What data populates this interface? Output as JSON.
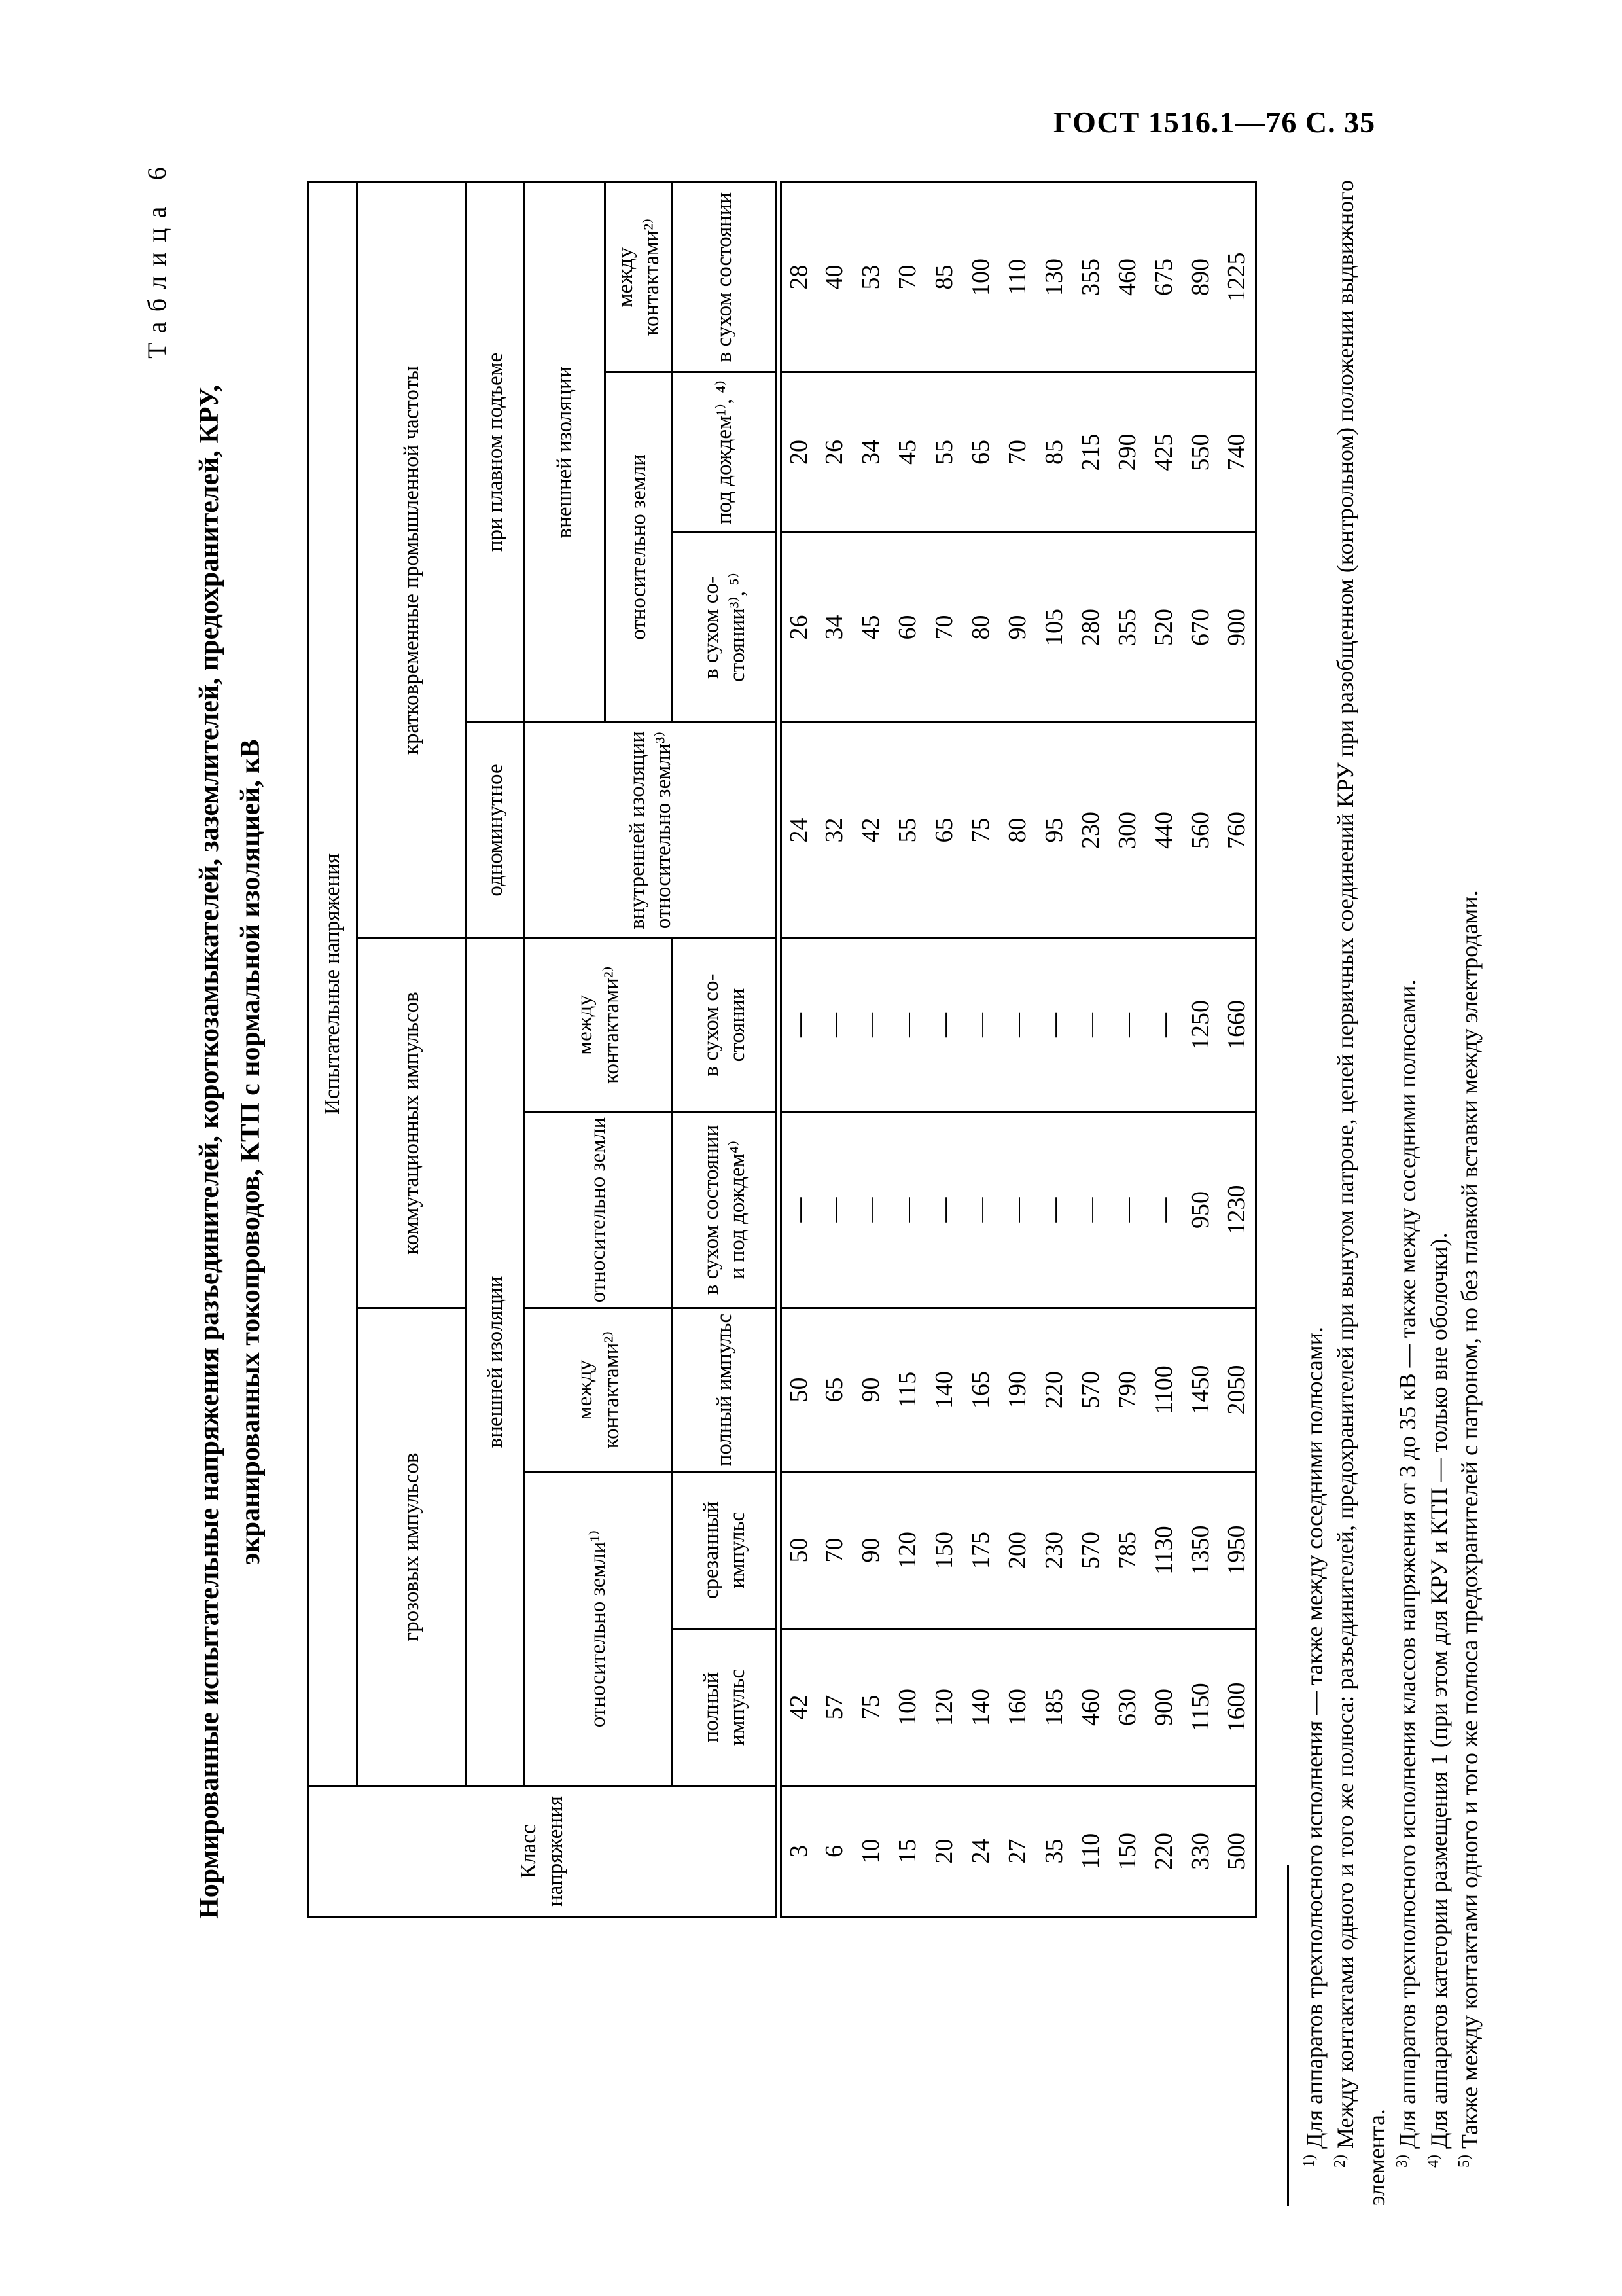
{
  "page": {
    "running_head": "ГОСТ 1516.1—76 С. 35",
    "table_label": "Таблица 6",
    "title_line1": "Нормированные испытательные напряжения разъединителей, короткозамыкателей, заземлителей, предохранителей, КРУ,",
    "title_line2": "экранированных токопроводов, КТП с нормальной изоляцией, кВ"
  },
  "table": {
    "corner": "Класс напряжения",
    "h1_test_voltages": "Испытательные напряжения",
    "h2": {
      "lightning": "грозовых импульсов",
      "switching": "коммутационных импульсов",
      "power_freq": "кратковременные промышленной частоты"
    },
    "h3": {
      "external_lightning_switching": "внешней изоляции",
      "one_minute": "одноминутное",
      "smooth_rise": "при плавном подъеме"
    },
    "h4": {
      "to_earth_lightning": "относительно земли¹⁾",
      "between_contacts_lightning": "между контактами²⁾",
      "to_earth_switching": "относительно земли",
      "between_contacts_switching": "между контактами²⁾",
      "internal_to_earth": "внутренней изоляции от­носительно земли³⁾",
      "external_pf": "внешней изоляции"
    },
    "h5": {
      "to_earth_pf": "относительно земли",
      "between_contacts_pf": "между контактами²⁾"
    },
    "h6": {
      "full_impulse_earth": "полный импульс",
      "chopped_impulse": "срезанный импульс",
      "full_impulse_contacts": "полный импульс",
      "dry_and_rain": "в сухом состоя­нии и под до­ждем⁴⁾",
      "dry_switching": "в сухом со­стоянии",
      "dry_pf": "в сухом со­стоянии³⁾, ⁵⁾",
      "rain_pf": "под дож­дем¹⁾, ⁴⁾",
      "dry_contacts_pf": "в сухом со­стоянии"
    },
    "rows": [
      [
        "3",
        "42",
        "50",
        "50",
        "—",
        "—",
        "24",
        "26",
        "20",
        "28"
      ],
      [
        "6",
        "57",
        "70",
        "65",
        "—",
        "—",
        "32",
        "34",
        "26",
        "40"
      ],
      [
        "10",
        "75",
        "90",
        "90",
        "—",
        "—",
        "42",
        "45",
        "34",
        "53"
      ],
      [
        "15",
        "100",
        "120",
        "115",
        "—",
        "—",
        "55",
        "60",
        "45",
        "70"
      ],
      [
        "20",
        "120",
        "150",
        "140",
        "—",
        "—",
        "65",
        "70",
        "55",
        "85"
      ],
      [
        "24",
        "140",
        "175",
        "165",
        "—",
        "—",
        "75",
        "80",
        "65",
        "100"
      ],
      [
        "27",
        "160",
        "200",
        "190",
        "—",
        "—",
        "80",
        "90",
        "70",
        "110"
      ],
      [
        "35",
        "185",
        "230",
        "220",
        "—",
        "—",
        "95",
        "105",
        "85",
        "130"
      ],
      [
        "110",
        "460",
        "570",
        "570",
        "—",
        "—",
        "230",
        "280",
        "215",
        "355"
      ],
      [
        "150",
        "630",
        "785",
        "790",
        "—",
        "—",
        "300",
        "355",
        "290",
        "460"
      ],
      [
        "220",
        "900",
        "1130",
        "1100",
        "—",
        "—",
        "440",
        "520",
        "425",
        "675"
      ],
      [
        "330",
        "1150",
        "1350",
        "1450",
        "950",
        "1250",
        "560",
        "670",
        "550",
        "890"
      ],
      [
        "500",
        "1600",
        "1950",
        "2050",
        "1230",
        "1660",
        "760",
        "900",
        "740",
        "1225"
      ]
    ]
  },
  "footnotes": [
    {
      "marker": "1)",
      "text": " Для аппаратов трехполюсного исполнения — также между соседними полюсами."
    },
    {
      "marker": "2)",
      "text": " Между контактами одного и того же полюса: разъединителей, предохранителей при вынутом патроне, цепей первичных соединений КРУ при разобщенном (контрольном) положении выдвижного элемента."
    },
    {
      "marker": "3)",
      "text": " Для аппаратов трехполюсного исполнения классов напряжения от 3 до 35 кВ — также между соседними полюсами."
    },
    {
      "marker": "4)",
      "text": " Для аппаратов категории размещения 1 (при этом для КРУ и КТП — только вне оболочки)."
    },
    {
      "marker": "5)",
      "text": " Также между контактами одного и того же полюса предохранителей с патроном, но без плавкой вставки между электродами."
    }
  ]
}
